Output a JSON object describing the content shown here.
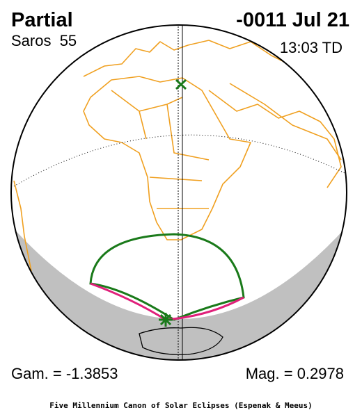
{
  "header": {
    "type": "Partial",
    "date": "-0011 Jul 21",
    "saros": "Saros  55",
    "time": "13:03 TD"
  },
  "footer": {
    "gamma": "Gam. = -1.3853",
    "magnitude": "Mag. = 0.2978",
    "credit": "Five Millennium Canon of Solar Eclipses (Espenak & Meeus)"
  }
}
